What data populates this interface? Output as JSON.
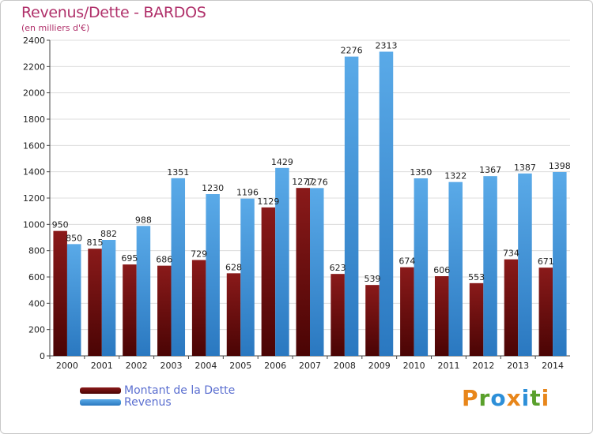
{
  "header": {
    "title": "Revenus/Dette - BARDOS",
    "subtitle": "(en milliers d'€)"
  },
  "logo": {
    "letters": [
      "P",
      "r",
      "o",
      "x",
      "i",
      "t",
      "i"
    ],
    "colors": [
      "#e8861a",
      "#5aa02c",
      "#2d8fd8",
      "#e8861a",
      "#2d8fd8",
      "#5aa02c",
      "#e8861a"
    ]
  },
  "colors": {
    "dette": "#7a1010",
    "revenus": "#3f8fd8"
  },
  "chart_data": {
    "type": "bar",
    "title": "Revenus/Dette - BARDOS",
    "categories": [
      "2000",
      "2001",
      "2002",
      "2003",
      "2004",
      "2005",
      "2006",
      "2007",
      "2008",
      "2009",
      "2010",
      "2011",
      "2012",
      "2013",
      "2014"
    ],
    "series": [
      {
        "name": "Montant de la Dette",
        "values": [
          950,
          815,
          695,
          686,
          729,
          628,
          1129,
          1277,
          623,
          539,
          674,
          606,
          553,
          734,
          671
        ]
      },
      {
        "name": "Revenus",
        "values": [
          850,
          882,
          988,
          1351,
          1230,
          1196,
          1429,
          1276,
          2276,
          2313,
          1350,
          1322,
          1367,
          1387,
          1398
        ]
      }
    ],
    "yticks": [
      "0",
      "200",
      "400",
      "600",
      "800",
      "1000",
      "1200",
      "1400",
      "1600",
      "1800",
      "2000",
      "2200",
      "2400"
    ],
    "ylim": [
      0,
      2400
    ],
    "legend_position": "bottom-left"
  }
}
